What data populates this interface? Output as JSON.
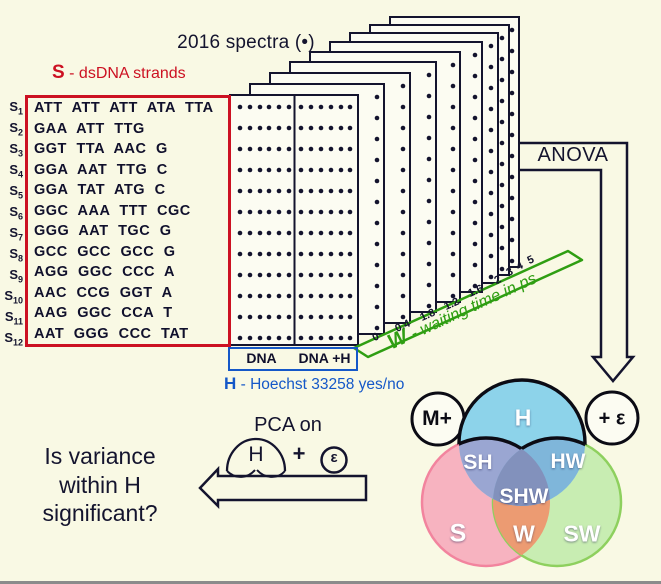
{
  "title": "2016 spectra (•)",
  "strand_legend": {
    "symbol": "S",
    "separator": "-",
    "label": "dsDNA strands"
  },
  "strands": [
    {
      "id": "S",
      "index": "1",
      "sequence": "ATT ATT ATT ATA TTA"
    },
    {
      "id": "S",
      "index": "2",
      "sequence": "GAA ATT TTG"
    },
    {
      "id": "S",
      "index": "3",
      "sequence": "GGT TTA AAC G"
    },
    {
      "id": "S",
      "index": "4",
      "sequence": "GGA AAT TTG C"
    },
    {
      "id": "S",
      "index": "5",
      "sequence": "GGA TAT ATG C"
    },
    {
      "id": "S",
      "index": "6",
      "sequence": "GGC AAA TTT CGC"
    },
    {
      "id": "S",
      "index": "7",
      "sequence": "GGG AAT TGC G"
    },
    {
      "id": "S",
      "index": "8",
      "sequence": "GCC GCC GCC G"
    },
    {
      "id": "S",
      "index": "9",
      "sequence": "AGG GGC CCC A"
    },
    {
      "id": "S",
      "index": "10",
      "sequence": "AAC CCG GGT A"
    },
    {
      "id": "S",
      "index": "11",
      "sequence": "AAG GGC CCA T"
    },
    {
      "id": "S",
      "index": "12",
      "sequence": "AAT GGG CCC TAT"
    }
  ],
  "conditions": {
    "left": "DNA",
    "right": "DNA +H"
  },
  "hoechst_legend": {
    "symbol": "H",
    "separator": "-",
    "label": "Hoechst 33258 yes/no"
  },
  "waiting_time_axis": {
    "symbol": "W",
    "separator": "-",
    "label": "waiting time in ps",
    "ticks": [
      "0",
      "0.4",
      "1.8",
      "1.2",
      "1.6",
      "2",
      "3",
      "4",
      "5"
    ]
  },
  "anova_label": "ANOVA",
  "pca": {
    "title": "PCA on",
    "set_h": "H",
    "plus": "+",
    "epsilon": "ε"
  },
  "question": {
    "line1": "Is variance",
    "line2": "within H",
    "line3": "significant?"
  },
  "venn": {
    "h": "H",
    "sh": "SH",
    "hw": "HW",
    "shw": "SHW",
    "s": "S",
    "w": "W",
    "sw": "SW",
    "left_bubble": "M+",
    "right_bubble": "+ ε"
  },
  "colors": {
    "strand_red": "#cc1122",
    "hoechst_blue": "#1558c8",
    "waiting_green": "#2f9e12",
    "ink_navy": "#14142e",
    "venn_h": "#8dd3ea",
    "venn_s": "#f7b3c0",
    "venn_w": "#c8edb2",
    "venn_sh": "#9aa6d2",
    "venn_hw": "#7fb6da",
    "venn_shw": "#8291bc",
    "venn_sw_overlap": "#ec9b72",
    "bubble_fill": "#fcfcf2"
  }
}
